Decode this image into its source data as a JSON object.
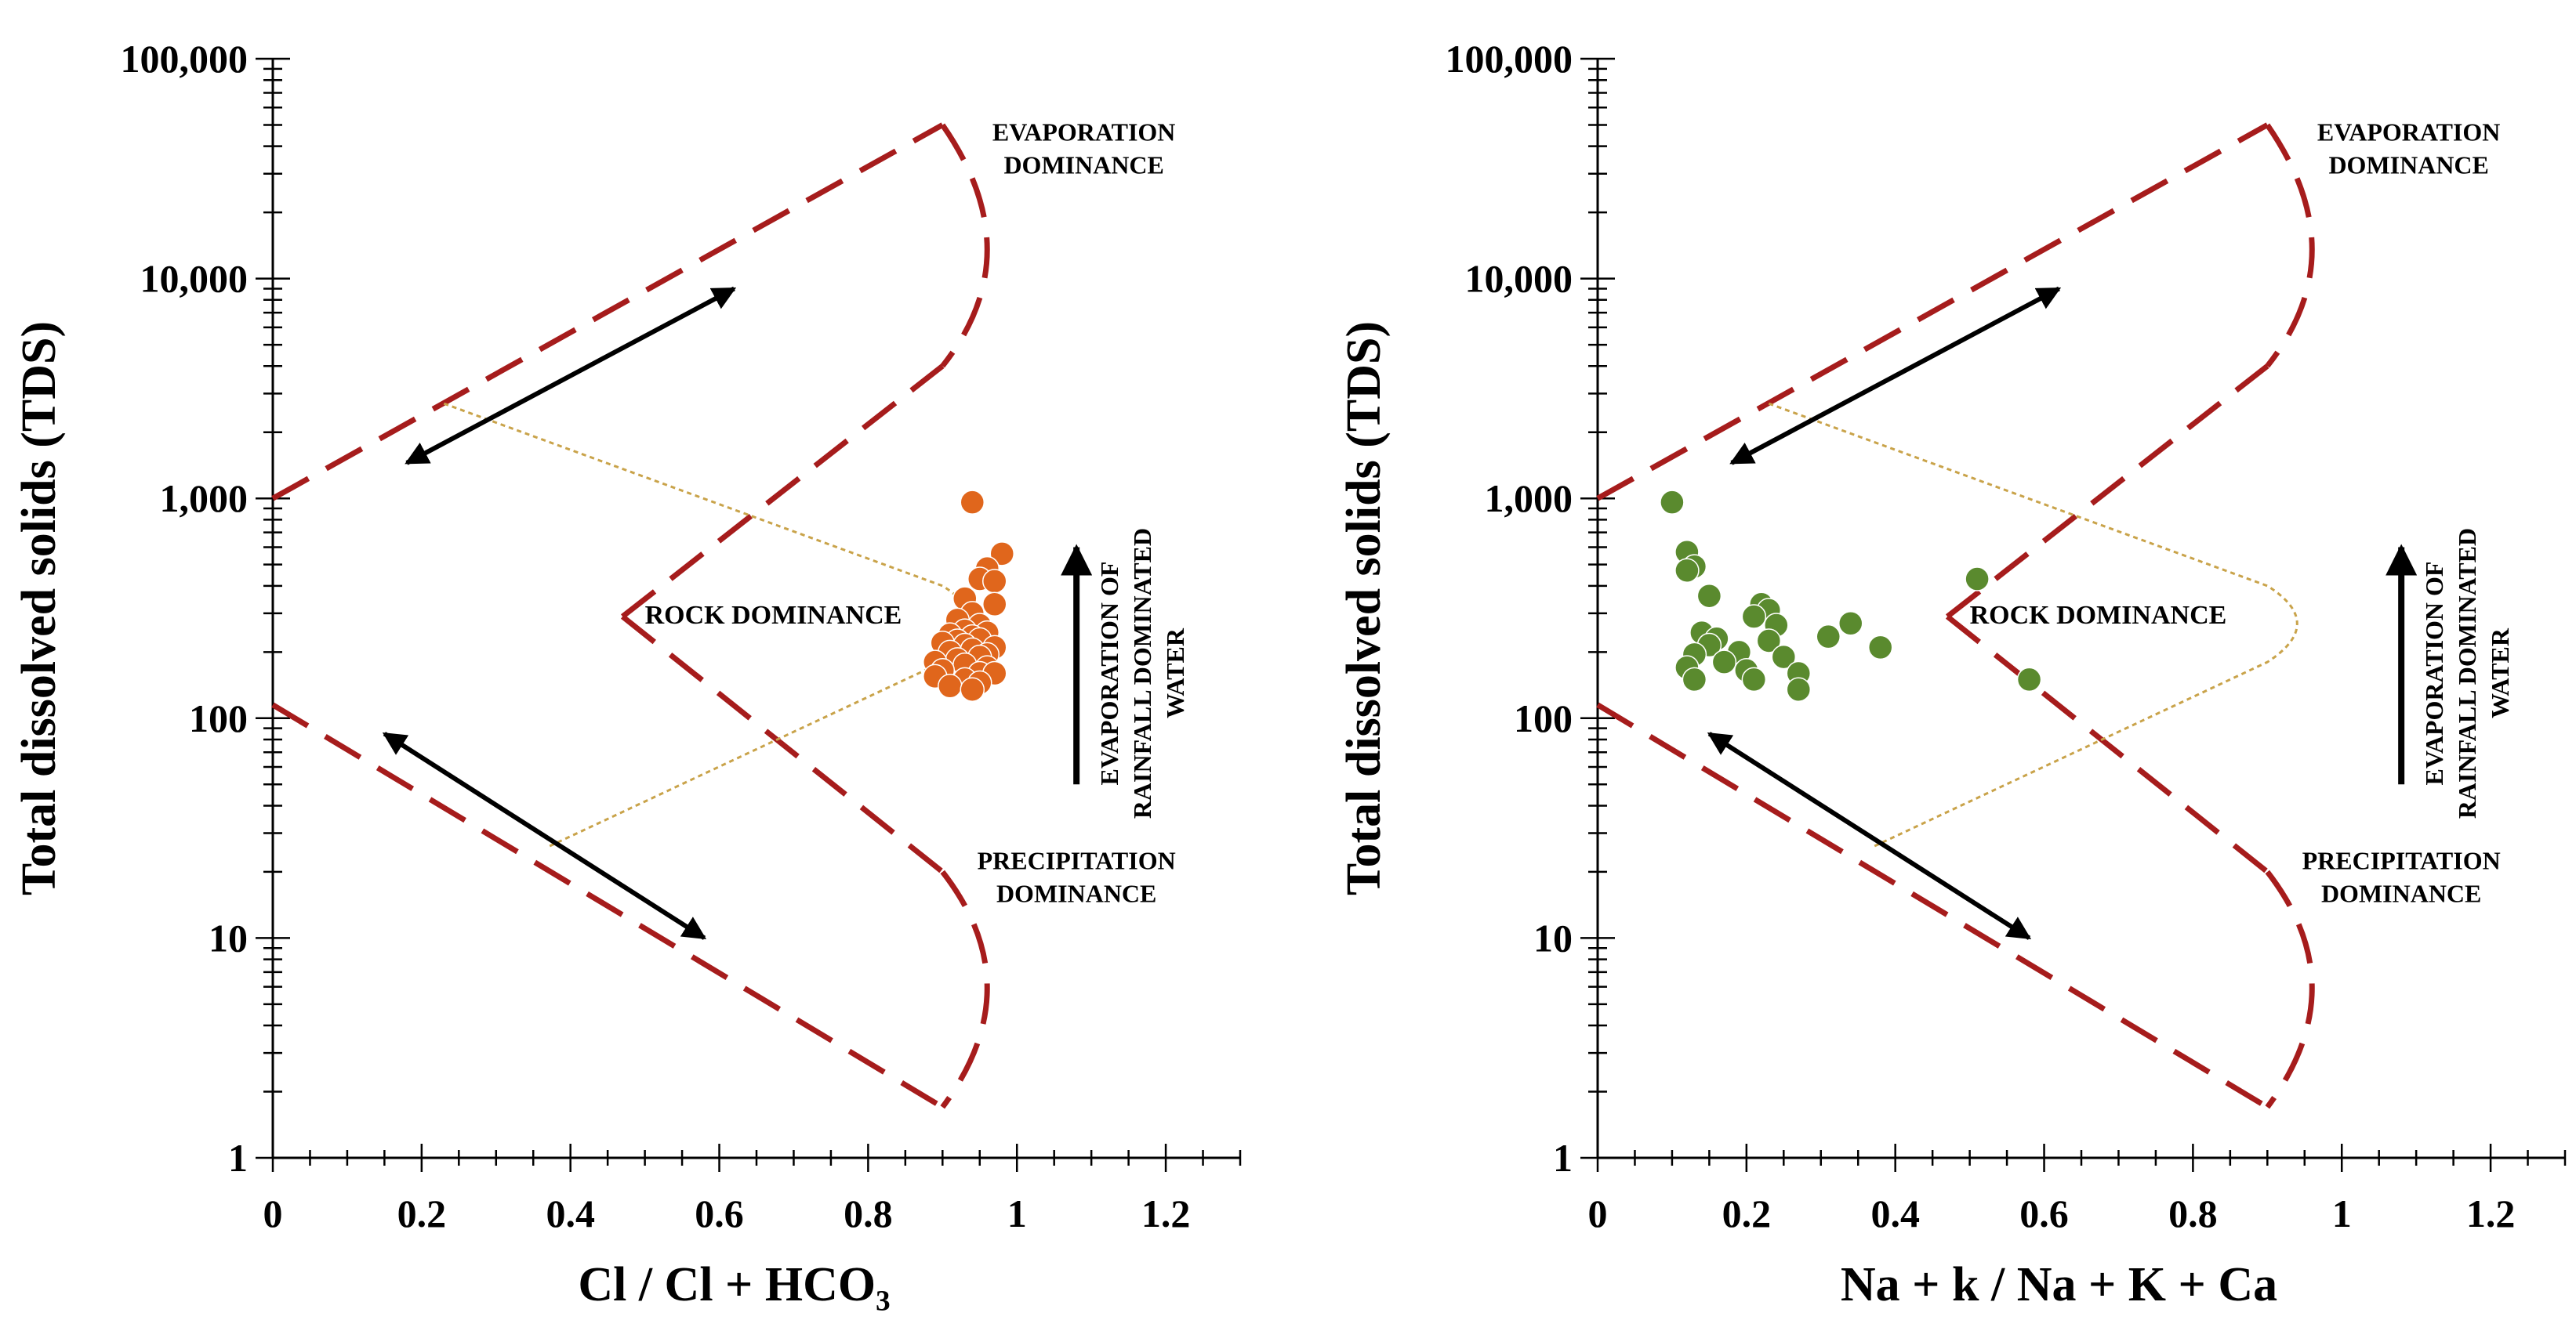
{
  "chart_data": [
    {
      "type": "scatter",
      "panel": "left",
      "title": "",
      "xlabel": "Cl / Cl + HCO₃",
      "ylabel": "Total dissolved solids (TDS)",
      "xlim": [
        0,
        1.3
      ],
      "ylim": [
        1,
        100000
      ],
      "yscale": "log",
      "x_ticks": [
        0,
        0.2,
        0.4,
        0.6,
        0.8,
        1,
        1.2
      ],
      "x_tick_labels": [
        "0",
        "0.2",
        "0.4",
        "0.6",
        "0.8",
        "1",
        "1.2"
      ],
      "y_ticks": [
        1,
        10,
        100,
        1000,
        10000,
        100000
      ],
      "y_tick_labels": [
        "1",
        "10",
        "100",
        "1,000",
        "10,000",
        "100,000"
      ],
      "point_color": "#e0661c",
      "series": [
        {
          "name": "samples",
          "points": [
            [
              0.94,
              960
            ],
            [
              0.98,
              560
            ],
            [
              0.96,
              480
            ],
            [
              0.95,
              430
            ],
            [
              0.97,
              420
            ],
            [
              0.93,
              350
            ],
            [
              0.97,
              330
            ],
            [
              0.94,
              300
            ],
            [
              0.92,
              280
            ],
            [
              0.95,
              265
            ],
            [
              0.93,
              250
            ],
            [
              0.96,
              245
            ],
            [
              0.91,
              240
            ],
            [
              0.94,
              235
            ],
            [
              0.95,
              228
            ],
            [
              0.92,
              225
            ],
            [
              0.9,
              220
            ],
            [
              0.93,
              215
            ],
            [
              0.97,
              210
            ],
            [
              0.94,
              205
            ],
            [
              0.91,
              200
            ],
            [
              0.96,
              195
            ],
            [
              0.95,
              190
            ],
            [
              0.92,
              185
            ],
            [
              0.89,
              180
            ],
            [
              0.93,
              175
            ],
            [
              0.96,
              170
            ],
            [
              0.9,
              165
            ],
            [
              0.95,
              160
            ],
            [
              0.97,
              160
            ],
            [
              0.89,
              155
            ],
            [
              0.93,
              150
            ],
            [
              0.95,
              145
            ],
            [
              0.91,
              140
            ],
            [
              0.94,
              135
            ]
          ]
        }
      ],
      "annotations": {
        "evaporation": [
          "EVAPORATION",
          "DOMINANCE"
        ],
        "rock": "ROCK DOMINANCE",
        "precipitation": [
          "PRECIPITATION",
          "DOMINANCE"
        ],
        "rainfall": [
          "EVAPORATION OF",
          "RAINFALL DOMINATED",
          "WATER"
        ]
      }
    },
    {
      "type": "scatter",
      "panel": "right",
      "title": "",
      "xlabel": "Na + k / Na + K + Ca",
      "ylabel": "Total dissolved solids (TDS)",
      "xlim": [
        0,
        1.3
      ],
      "ylim": [
        1,
        100000
      ],
      "yscale": "log",
      "x_ticks": [
        0,
        0.2,
        0.4,
        0.6,
        0.8,
        1,
        1.2
      ],
      "x_tick_labels": [
        "0",
        "0.2",
        "0.4",
        "0.6",
        "0.8",
        "1",
        "1.2"
      ],
      "y_ticks": [
        1,
        10,
        100,
        1000,
        10000,
        100000
      ],
      "y_tick_labels": [
        "1",
        "10",
        "100",
        "1,000",
        "10,000",
        "100,000"
      ],
      "point_color": "#5a8a2e",
      "series": [
        {
          "name": "samples",
          "points": [
            [
              0.1,
              960
            ],
            [
              0.12,
              570
            ],
            [
              0.13,
              490
            ],
            [
              0.12,
              470
            ],
            [
              0.51,
              430
            ],
            [
              0.15,
              360
            ],
            [
              0.22,
              330
            ],
            [
              0.23,
              310
            ],
            [
              0.21,
              290
            ],
            [
              0.34,
              270
            ],
            [
              0.24,
              265
            ],
            [
              0.14,
              245
            ],
            [
              0.31,
              235
            ],
            [
              0.16,
              230
            ],
            [
              0.23,
              225
            ],
            [
              0.15,
              215
            ],
            [
              0.38,
              210
            ],
            [
              0.19,
              200
            ],
            [
              0.13,
              195
            ],
            [
              0.25,
              190
            ],
            [
              0.17,
              180
            ],
            [
              0.12,
              170
            ],
            [
              0.2,
              165
            ],
            [
              0.27,
              160
            ],
            [
              0.13,
              150
            ],
            [
              0.21,
              150
            ],
            [
              0.58,
              150
            ],
            [
              0.27,
              135
            ]
          ]
        }
      ],
      "annotations": {
        "evaporation": [
          "EVAPORATION",
          "DOMINANCE"
        ],
        "rock": "ROCK DOMINANCE",
        "precipitation": [
          "PRECIPITATION",
          "DOMINANCE"
        ],
        "rainfall": [
          "EVAPORATION OF",
          "RAINFALL DOMINATED",
          "WATER"
        ]
      }
    }
  ],
  "colors": {
    "boundary": "#a61c1c",
    "guide": "#c9a34a",
    "arrow": "#000000",
    "left_points": "#e0661c",
    "right_points": "#5a8a2e"
  }
}
